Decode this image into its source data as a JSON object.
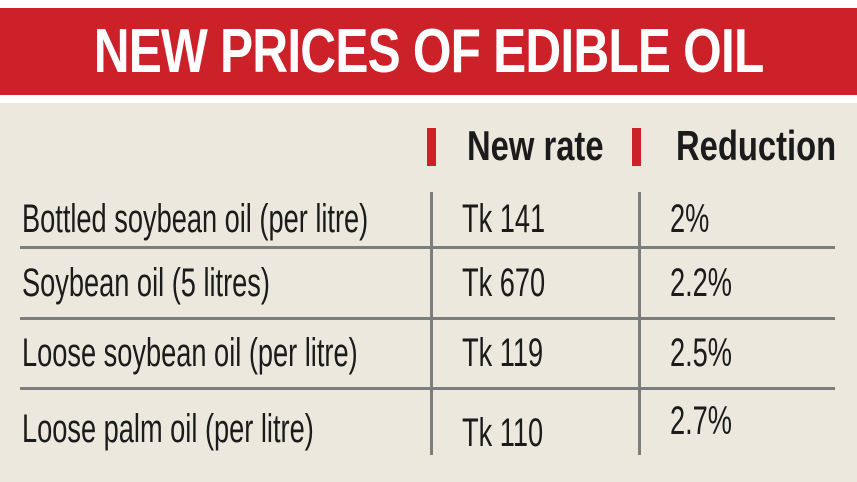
{
  "title": "NEW PRICES OF EDIBLE OIL",
  "chart_data": {
    "type": "table",
    "title": "NEW PRICES OF EDIBLE OIL",
    "column_headers": [
      "New rate",
      "Reduction"
    ],
    "rows": [
      {
        "item": "Bottled soybean oil (per litre)",
        "new_rate": "Tk 141",
        "reduction": "2%"
      },
      {
        "item": "Soybean oil (5 litres)",
        "new_rate": "Tk 670",
        "reduction": "2.2%"
      },
      {
        "item": "Loose soybean oil (per litre)",
        "new_rate": "Tk 119",
        "reduction": "2.5%"
      },
      {
        "item": "Loose palm oil (per litre)",
        "new_rate": "Tk 110",
        "reduction": "2.7%"
      }
    ]
  },
  "colors": {
    "banner_red": "#cc2128",
    "background_cream": "#ece8de",
    "divider_gray": "#7c7e7e",
    "text": "#1b1b1b",
    "title_text": "#ffffff",
    "white": "#ffffff"
  }
}
